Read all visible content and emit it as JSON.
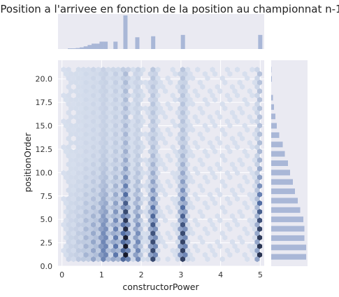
{
  "chart_data": {
    "type": "hexbin-joint",
    "title": "Position a l'arrivee en fonction de la position au championnat n-1",
    "xlabel": "constructorPower",
    "ylabel": "positionOrder",
    "xlim": [
      -0.1,
      5.1
    ],
    "ylim": [
      0,
      22
    ],
    "xticks": [
      0,
      1,
      2,
      3,
      4,
      5
    ],
    "yticks": [
      0.0,
      2.5,
      5.0,
      7.5,
      10.0,
      12.5,
      15.0,
      17.5,
      20.0
    ],
    "ytick_labels": [
      "0.0",
      "2.5",
      "5.0",
      "7.5",
      "10.0",
      "12.5",
      "15.0",
      "17.5",
      "20.0"
    ],
    "grid": true,
    "colors": {
      "background": "#eaeaf2",
      "grid": "#ffffff",
      "hist": "#a9b7d7",
      "hex_dark": "#15192b",
      "hex_mid": "#5571a8",
      "hex_light": "#dfe6f2"
    },
    "x_marginal": {
      "bins": [
        {
          "x": 0.2,
          "count": 2
        },
        {
          "x": 0.3,
          "count": 2
        },
        {
          "x": 0.4,
          "count": 3
        },
        {
          "x": 0.5,
          "count": 5
        },
        {
          "x": 0.6,
          "count": 8
        },
        {
          "x": 0.7,
          "count": 12
        },
        {
          "x": 0.8,
          "count": 16
        },
        {
          "x": 0.9,
          "count": 16
        },
        {
          "x": 1.0,
          "count": 22
        },
        {
          "x": 1.1,
          "count": 22
        },
        {
          "x": 1.35,
          "count": 22
        },
        {
          "x": 1.6,
          "count": 100
        },
        {
          "x": 1.9,
          "count": 35
        },
        {
          "x": 2.3,
          "count": 38
        },
        {
          "x": 3.05,
          "count": 42
        },
        {
          "x": 5.0,
          "count": 42
        }
      ]
    },
    "y_marginal": {
      "bins": [
        {
          "y": 1,
          "count": 100
        },
        {
          "y": 2,
          "count": 100
        },
        {
          "y": 3,
          "count": 95
        },
        {
          "y": 4,
          "count": 95
        },
        {
          "y": 5,
          "count": 92
        },
        {
          "y": 6,
          "count": 83
        },
        {
          "y": 7,
          "count": 76
        },
        {
          "y": 8,
          "count": 68
        },
        {
          "y": 9,
          "count": 62
        },
        {
          "y": 10,
          "count": 54
        },
        {
          "y": 11,
          "count": 48
        },
        {
          "y": 12,
          "count": 39
        },
        {
          "y": 13,
          "count": 33
        },
        {
          "y": 14,
          "count": 23
        },
        {
          "y": 15,
          "count": 16
        },
        {
          "y": 16,
          "count": 12
        },
        {
          "y": 17,
          "count": 8
        },
        {
          "y": 18,
          "count": 5
        },
        {
          "y": 20,
          "count": 2
        },
        {
          "y": 21,
          "count": 1
        }
      ]
    }
  }
}
